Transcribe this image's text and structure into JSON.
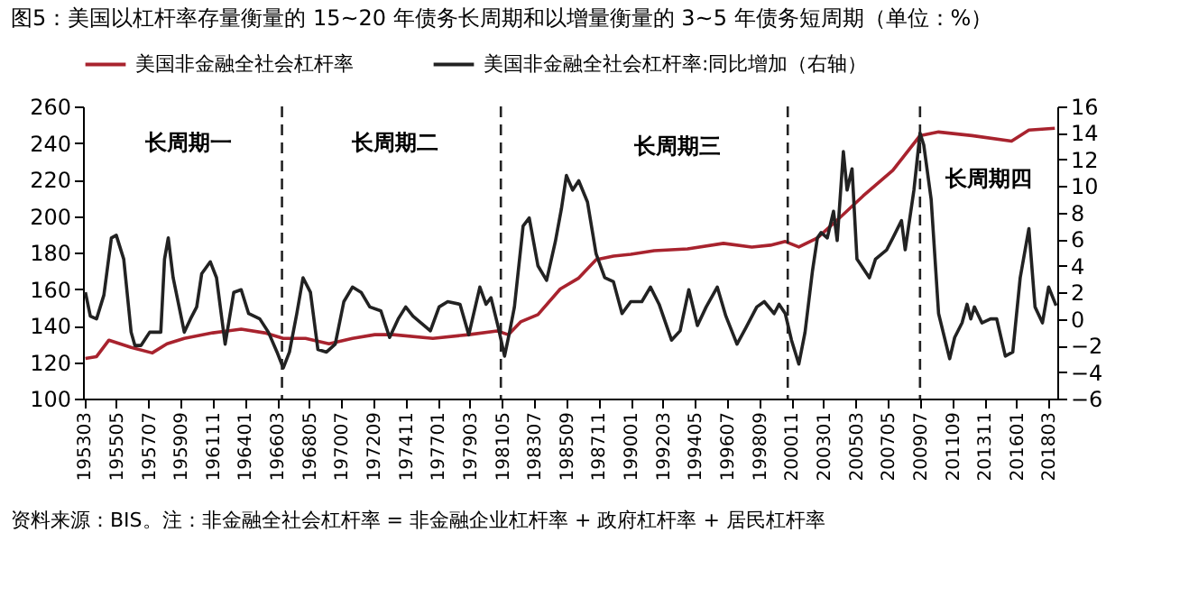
{
  "chart_data": {
    "type": "line",
    "title": "图5：美国以杠杆率存量衡量的 15~20 年债务长周期和以增量衡量的 3~5 年债务短周期（单位：%）",
    "xlim": [
      "1953-02",
      "2018-10"
    ],
    "xticks": [
      {
        "value": "1953-03",
        "label": "195303"
      },
      {
        "value": "1955-05",
        "label": "195505"
      },
      {
        "value": "1957-07",
        "label": "195707"
      },
      {
        "value": "1959-09",
        "label": "195909"
      },
      {
        "value": "1961-11",
        "label": "196111"
      },
      {
        "value": "1964-01",
        "label": "196401"
      },
      {
        "value": "1966-03",
        "label": "196603"
      },
      {
        "value": "1968-05",
        "label": "196805"
      },
      {
        "value": "1970-07",
        "label": "197007"
      },
      {
        "value": "1972-09",
        "label": "197209"
      },
      {
        "value": "1974-11",
        "label": "197411"
      },
      {
        "value": "1977-01",
        "label": "197701"
      },
      {
        "value": "1979-03",
        "label": "197903"
      },
      {
        "value": "1981-05",
        "label": "198105"
      },
      {
        "value": "1983-07",
        "label": "198307"
      },
      {
        "value": "1985-09",
        "label": "198509"
      },
      {
        "value": "1987-11",
        "label": "198711"
      },
      {
        "value": "1990-01",
        "label": "199001"
      },
      {
        "value": "1992-03",
        "label": "199203"
      },
      {
        "value": "1994-05",
        "label": "199405"
      },
      {
        "value": "1996-07",
        "label": "199607"
      },
      {
        "value": "1998-09",
        "label": "199809"
      },
      {
        "value": "2000-11",
        "label": "200011"
      },
      {
        "value": "2003-01",
        "label": "200301"
      },
      {
        "value": "2005-03",
        "label": "200503"
      },
      {
        "value": "2007-05",
        "label": "200705"
      },
      {
        "value": "2009-07",
        "label": "200907"
      },
      {
        "value": "2011-09",
        "label": "201109"
      },
      {
        "value": "2013-11",
        "label": "201311"
      },
      {
        "value": "2016-01",
        "label": "201601"
      },
      {
        "value": "2018-03",
        "label": "201803"
      }
    ],
    "ylim": [
      100,
      260
    ],
    "yticks": [
      100,
      120,
      140,
      160,
      180,
      200,
      220,
      240,
      260
    ],
    "y2lim": [
      -6,
      16
    ],
    "y2ticks": [
      -6,
      -4,
      -2,
      0,
      2,
      4,
      6,
      8,
      10,
      12,
      14,
      16
    ],
    "grid": false,
    "legend": "top",
    "series": [
      {
        "name": "美国非金融全社会杠杆率",
        "color": "#a8232e",
        "x": [
          "1953-04",
          "1954-01",
          "1954-11",
          "1956-05",
          "1957-10",
          "1958-10",
          "1959-12",
          "1961-11",
          "1963-10",
          "1965-05",
          "1966-08",
          "1968-02",
          "1969-09",
          "1971-04",
          "1972-10",
          "1974-01",
          "1976-09",
          "1979-02",
          "1981-01",
          "1981-10",
          "1982-08",
          "1983-10",
          "1985-04",
          "1986-07",
          "1987-09",
          "1988-11",
          "1990-01",
          "1991-08",
          "1993-11",
          "1996-04",
          "1998-03",
          "1999-06",
          "2000-06",
          "2001-05",
          "2002-08",
          "2004-02",
          "2005-09",
          "2007-09",
          "2009-07",
          "2010-10",
          "2013-01",
          "2015-09",
          "2016-11",
          "2018-08"
        ],
        "values": [
          122,
          123,
          132,
          128,
          125,
          130,
          133,
          136,
          138,
          136,
          133,
          133,
          130,
          133,
          135,
          135,
          133,
          135,
          137,
          135,
          142,
          146,
          160,
          166,
          176,
          178,
          179,
          181,
          182,
          185,
          183,
          184,
          186,
          183,
          188,
          199,
          211,
          225,
          244,
          246,
          244,
          241,
          247,
          248
        ]
      },
      {
        "name": "美国非金融全社会杠杆率:同比增加（右轴）",
        "color": "#222222",
        "axis": "y2",
        "x": [
          "1953-04",
          "1953-08",
          "1954-01",
          "1954-07",
          "1955-01",
          "1955-05",
          "1955-11",
          "1956-05",
          "1956-08",
          "1957-01",
          "1957-08",
          "1958-05",
          "1958-08",
          "1958-11",
          "1959-03",
          "1959-12",
          "1960-05",
          "1960-10",
          "1961-02",
          "1961-09",
          "1962-02",
          "1962-09",
          "1963-04",
          "1963-10",
          "1964-04",
          "1965-01",
          "1965-08",
          "1966-03",
          "1966-08",
          "1967-01",
          "1967-07",
          "1967-12",
          "1968-06",
          "1968-12",
          "1969-07",
          "1970-02",
          "1970-09",
          "1971-04",
          "1971-11",
          "1972-06",
          "1973-03",
          "1973-10",
          "1974-05",
          "1974-11",
          "1975-05",
          "1976-07",
          "1977-02",
          "1977-09",
          "1978-07",
          "1979-02",
          "1979-11",
          "1980-04",
          "1980-08",
          "1981-02",
          "1981-07",
          "1981-11",
          "1982-03",
          "1982-10",
          "1983-03",
          "1983-10",
          "1984-05",
          "1984-12",
          "1985-05",
          "1985-09",
          "1986-02",
          "1986-07",
          "1987-02",
          "1987-09",
          "1988-04",
          "1988-11",
          "1989-06",
          "1990-01",
          "1990-10",
          "1991-05",
          "1991-12",
          "1992-10",
          "1993-05",
          "1993-12",
          "1994-07",
          "1995-02",
          "1995-11",
          "1996-06",
          "1997-03",
          "1997-10",
          "1998-07",
          "1999-01",
          "1999-09",
          "2000-01",
          "2000-06",
          "2000-11",
          "2001-05",
          "2001-10",
          "2002-04",
          "2002-08",
          "2002-11",
          "2003-04",
          "2003-09",
          "2003-12",
          "2004-05",
          "2004-08",
          "2004-12",
          "2005-04",
          "2006-02",
          "2006-07",
          "2007-04",
          "2007-09",
          "2008-04",
          "2008-07",
          "2009-02",
          "2009-07",
          "2009-10",
          "2010-04",
          "2010-10",
          "2011-07",
          "2011-11",
          "2012-05",
          "2012-09",
          "2012-12",
          "2013-03",
          "2013-09",
          "2014-04",
          "2014-09",
          "2015-04",
          "2015-10",
          "2016-04",
          "2016-11",
          "2017-04",
          "2017-10",
          "2018-03",
          "2018-09"
        ],
        "values": [
          2.0,
          0.2,
          0,
          1.8,
          6.1,
          6.3,
          4.5,
          -1.0,
          -2.0,
          -2.0,
          -1.0,
          -1.0,
          4.5,
          6.1,
          3.1,
          -1.0,
          0,
          0.9,
          3.4,
          4.3,
          3.1,
          -1.9,
          2.0,
          2.2,
          0.4,
          0,
          -1.0,
          -2.5,
          -3.7,
          -2.5,
          0.4,
          3.1,
          2.0,
          -2.3,
          -2.5,
          -1.9,
          1.3,
          2.4,
          2.0,
          0.9,
          0.6,
          -1.4,
          0,
          0.9,
          0.2,
          -0.9,
          0.9,
          1.3,
          1.1,
          -1.2,
          2.4,
          1.1,
          1.6,
          -0.7,
          -2.8,
          -1.0,
          0.9,
          7.0,
          7.6,
          4.0,
          2.9,
          5.8,
          8.3,
          10.8,
          9.7,
          10.4,
          8.8,
          4.9,
          3.1,
          2.8,
          0.4,
          1.3,
          1.3,
          2.4,
          1.1,
          -1.6,
          -0.9,
          2.2,
          -0.5,
          0.9,
          2.4,
          0.2,
          -1.9,
          -0.7,
          0.9,
          1.3,
          0.4,
          1.1,
          0.4,
          -1.6,
          -3.4,
          -1.0,
          3.6,
          6.1,
          6.5,
          6.1,
          8.1,
          5.9,
          12.6,
          9.7,
          11.3,
          4.5,
          3.1,
          4.5,
          5.2,
          6.1,
          7.4,
          5.2,
          9.7,
          14.0,
          13.1,
          9.0,
          0.4,
          -3.0,
          -1.4,
          -0.3,
          1.1,
          0,
          0.9,
          -0.3,
          0,
          0,
          -2.8,
          -2.5,
          3.1,
          6.8,
          0.9,
          -0.3,
          2.4,
          1.0
        ]
      }
    ],
    "ref_lines": [
      {
        "axis": "x",
        "value": "1966-07",
        "color": "#222222",
        "line_style": "dashed"
      },
      {
        "axis": "x",
        "value": "1981-04",
        "color": "#222222",
        "line_style": "dashed"
      },
      {
        "axis": "x",
        "value": "2000-08",
        "color": "#222222",
        "line_style": "dashed"
      },
      {
        "axis": "x",
        "value": "2009-07",
        "color": "#222222",
        "line_style": "dashed"
      }
    ],
    "annotations": [
      "长周期一",
      "长周期二",
      "长周期三",
      "长周期四",
      "资料来源：BIS。注：非金融全社会杠杆率 = 非金融企业杠杆率 + 政府杠杆率 + 居民杠杆率"
    ]
  }
}
